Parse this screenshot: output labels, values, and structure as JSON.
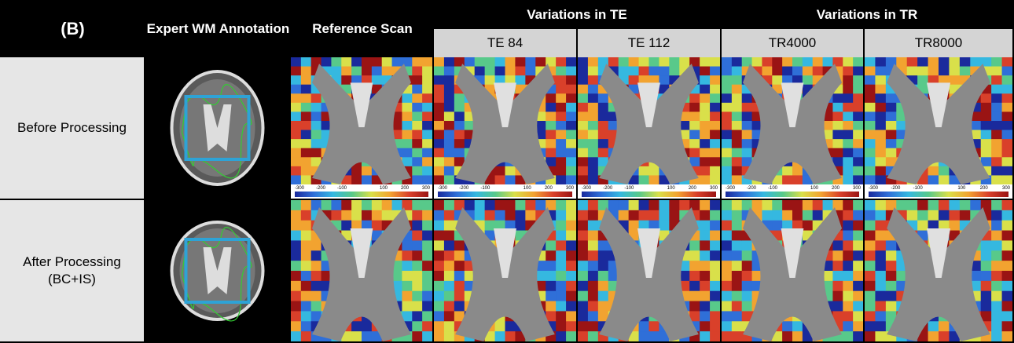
{
  "panel_label": "(B)",
  "columns": [
    "Expert WM Annotation",
    "Reference Scan"
  ],
  "groups": [
    {
      "label": "Variations in TE",
      "columns": [
        "TE 84",
        "TE 112"
      ]
    },
    {
      "label": "Variations in TR",
      "columns": [
        "TR4000",
        "TR8000"
      ]
    }
  ],
  "rows": [
    {
      "lines": [
        "Before Processing"
      ]
    },
    {
      "lines": [
        "After Processing",
        "(BC+IS)"
      ]
    }
  ],
  "colorbar_ticks": [
    -300,
    -200,
    -100,
    100,
    200,
    300
  ]
}
